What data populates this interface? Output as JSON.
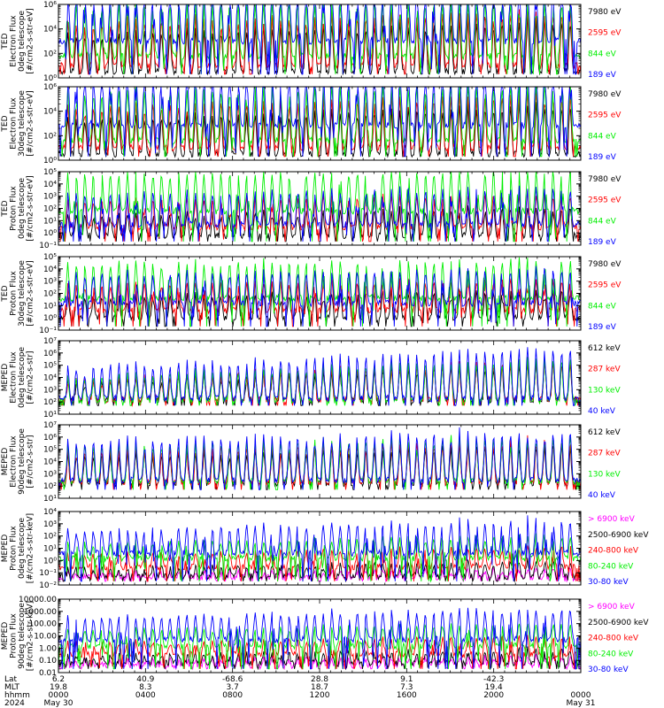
{
  "colors": {
    "black": "#000000",
    "red": "#ff0000",
    "green": "#00ee00",
    "blue": "#0000ff",
    "magenta": "#ff00ff"
  },
  "chart_data": [
    {
      "type": "line",
      "ylabel": [
        "TED",
        "Electron Flux",
        "0deg telescope",
        "[#/cm2-s-str-eV]"
      ],
      "yscale": "log",
      "ylim": [
        1,
        1000000
      ],
      "y_ticks": [
        "10⁰",
        "10²",
        "10⁴",
        "10⁶"
      ],
      "baseline": 2,
      "series": [
        {
          "name": "7980 eV",
          "color": "#000000",
          "level": 3.4,
          "spikes": [
            2.8,
            4.6
          ]
        },
        {
          "name": "2595 eV",
          "color": "#ff0000",
          "level": 10,
          "spikes": [
            3.4,
            4.8
          ]
        },
        {
          "name": "844 eV",
          "color": "#00ee00",
          "level": 60,
          "spikes": [
            4.2,
            5.0
          ]
        },
        {
          "name": "189 eV",
          "color": "#0000ff",
          "level": 1000,
          "spikes": [
            4.4,
            5.6
          ]
        }
      ]
    },
    {
      "type": "line",
      "ylabel": [
        "TED",
        "Electron Flux",
        "30deg telescope",
        "[#/cm2-s-str-eV]"
      ],
      "yscale": "log",
      "ylim": [
        1,
        1000000
      ],
      "y_ticks": [
        "10⁰",
        "10²",
        "10⁴",
        "10⁶"
      ],
      "baseline": 2,
      "series": [
        {
          "name": "7980 eV",
          "color": "#000000",
          "level": 3.2,
          "spikes": [
            2.6,
            4.4
          ]
        },
        {
          "name": "2595 eV",
          "color": "#ff0000",
          "level": 10,
          "spikes": [
            3.2,
            4.8
          ]
        },
        {
          "name": "844 eV",
          "color": "#00ee00",
          "level": 40,
          "spikes": [
            4.0,
            5.0
          ]
        },
        {
          "name": "189 eV",
          "color": "#0000ff",
          "level": 700,
          "spikes": [
            4.4,
            5.4
          ]
        }
      ]
    },
    {
      "type": "line",
      "ylabel": [
        "TED",
        "Proton Flux",
        "0deg telescope",
        "[#/cm2-s-str-eV]"
      ],
      "yscale": "log",
      "ylim": [
        0.1,
        100000
      ],
      "y_ticks": [
        "10⁻¹",
        "10⁰",
        "10¹",
        "10²",
        "10³",
        "10⁴",
        "10⁵"
      ],
      "baseline": 0.2,
      "series": [
        {
          "name": "7980 eV",
          "color": "#000000",
          "level": 0.6,
          "spikes": [
            1.4,
            2.6
          ]
        },
        {
          "name": "2595 eV",
          "color": "#ff0000",
          "level": 3,
          "spikes": [
            2.0,
            3.0
          ]
        },
        {
          "name": "844 eV",
          "color": "#00ee00",
          "level": 60,
          "spikes": [
            3.0,
            3.6
          ]
        },
        {
          "name": "189 eV",
          "color": "#0000ff",
          "level": 5,
          "spikes": [
            2.4,
            3.2
          ]
        }
      ]
    },
    {
      "type": "line",
      "ylabel": [
        "TED",
        "Proton Flux",
        "30deg telescope",
        "[#/cm2-s-str-eV]"
      ],
      "yscale": "log",
      "ylim": [
        0.1,
        100000
      ],
      "y_ticks": [
        "10⁻¹",
        "10⁰",
        "10¹",
        "10²",
        "10³",
        "10⁴",
        "10⁵"
      ],
      "baseline": 0.2,
      "series": [
        {
          "name": "7980 eV",
          "color": "#000000",
          "level": 1,
          "spikes": [
            1.6,
            2.4
          ]
        },
        {
          "name": "2595 eV",
          "color": "#ff0000",
          "level": 4,
          "spikes": [
            2.0,
            2.8
          ]
        },
        {
          "name": "844 eV",
          "color": "#00ee00",
          "level": 40,
          "spikes": [
            2.8,
            3.4
          ]
        },
        {
          "name": "189 eV",
          "color": "#0000ff",
          "level": 15,
          "spikes": [
            2.4,
            3.0
          ]
        }
      ]
    },
    {
      "type": "line",
      "ylabel": [
        "MEPED",
        "Electron Flux",
        "0deg telescope",
        "[#/cm2-s-str]"
      ],
      "yscale": "log",
      "ylim": [
        10,
        10000000
      ],
      "y_ticks": [
        "10¹",
        "10²",
        "10³",
        "10⁴",
        "10⁵",
        "10⁶",
        "10⁷"
      ],
      "baseline": 50,
      "series": [
        {
          "name": "612 keV",
          "color": "#000000",
          "level": 150,
          "spikes": [
            1.0,
            3.4
          ]
        },
        {
          "name": "287 keV",
          "color": "#ff0000",
          "level": 150,
          "spikes": [
            1.2,
            3.6
          ]
        },
        {
          "name": "130 keV",
          "color": "#00ee00",
          "level": 130,
          "spikes": [
            1.4,
            3.8
          ]
        },
        {
          "name": "40 keV",
          "color": "#0000ff",
          "level": 200,
          "spikes": [
            2.0,
            4.6
          ]
        }
      ]
    },
    {
      "type": "line",
      "ylabel": [
        "MEPED",
        "Electron Flux",
        "90deg telescope",
        "[#/cm2-s-str]"
      ],
      "yscale": "log",
      "ylim": [
        10,
        10000000
      ],
      "y_ticks": [
        "10¹",
        "10²",
        "10³",
        "10⁴",
        "10⁵",
        "10⁶",
        "10⁷"
      ],
      "baseline": 50,
      "series": [
        {
          "name": "612 keV",
          "color": "#000000",
          "level": 150,
          "spikes": [
            2.0,
            3.6
          ]
        },
        {
          "name": "287 keV",
          "color": "#ff0000",
          "level": 200,
          "spikes": [
            2.4,
            3.8
          ]
        },
        {
          "name": "130 keV",
          "color": "#00ee00",
          "level": 250,
          "spikes": [
            2.8,
            4.0
          ]
        },
        {
          "name": "40 keV",
          "color": "#0000ff",
          "level": 300,
          "spikes": [
            3.0,
            4.4
          ]
        }
      ]
    },
    {
      "type": "line",
      "ylabel": [
        "MEPED",
        "Proton Flux",
        "0deg telescope",
        "[#/cm2-s-str-keV]"
      ],
      "yscale": "log",
      "ylim": [
        0.01,
        10000
      ],
      "y_ticks": [
        "10⁻²",
        "10⁻¹",
        "10⁰",
        "10¹",
        "10²",
        "10³",
        "10⁴"
      ],
      "baseline": 0.02,
      "series": [
        {
          "name": "> 6900 keV",
          "color": "#ff00ff",
          "level": 0.04,
          "spikes": [
            0.2,
            0.8
          ]
        },
        {
          "name": "2500-6900 keV",
          "color": "#000000",
          "level": 0.05,
          "spikes": [
            0.4,
            1.4
          ]
        },
        {
          "name": "240-800 keV",
          "color": "#ff0000",
          "level": 0.3,
          "spikes": [
            0.8,
            1.8
          ]
        },
        {
          "name": "80-240 keV",
          "color": "#00ee00",
          "level": 1.5,
          "spikes": [
            1.0,
            2.0
          ]
        },
        {
          "name": "30-80 keV",
          "color": "#0000ff",
          "level": 4,
          "spikes": [
            1.6,
            3.0
          ]
        }
      ]
    },
    {
      "type": "line",
      "ylabel": [
        "MEPED",
        "Proton Flux",
        "90deg telescope",
        "[#/cm2-s-str-keV]"
      ],
      "yscale": "log",
      "ylim": [
        0.01,
        10000
      ],
      "y_ticks": [
        "0.01",
        "0.10",
        "1.00",
        "10.00",
        "100.00",
        "1000.00",
        "10000.00"
      ],
      "baseline": 0.02,
      "series": [
        {
          "name": "> 6900 keV",
          "color": "#ff00ff",
          "level": 0.04,
          "spikes": [
            0.2,
            0.8
          ]
        },
        {
          "name": "2500-6900 keV",
          "color": "#000000",
          "level": 0.06,
          "spikes": [
            0.4,
            1.2
          ]
        },
        {
          "name": "240-800 keV",
          "color": "#ff0000",
          "level": 0.3,
          "spikes": [
            0.8,
            1.6
          ]
        },
        {
          "name": "80-240 keV",
          "color": "#00ee00",
          "level": 1.5,
          "spikes": [
            1.0,
            2.0
          ]
        },
        {
          "name": "30-80 keV",
          "color": "#0000ff",
          "level": 5,
          "spikes": [
            1.6,
            2.8
          ]
        }
      ]
    }
  ],
  "x_axis": {
    "row_labels": [
      "Lat",
      "MLT",
      "hhmm",
      "2024"
    ],
    "ticks": [
      {
        "lat": "6.2",
        "mlt": "19.8",
        "hhmm": "0000",
        "date": "May 30"
      },
      {
        "lat": "40.9",
        "mlt": "8.3",
        "hhmm": "0400",
        "date": ""
      },
      {
        "lat": "-68.6",
        "mlt": "3.7",
        "hhmm": "0800",
        "date": ""
      },
      {
        "lat": "28.8",
        "mlt": "18.7",
        "hhmm": "1200",
        "date": ""
      },
      {
        "lat": "9.1",
        "mlt": "7.3",
        "hhmm": "1600",
        "date": ""
      },
      {
        "lat": "-42.3",
        "mlt": "19.4",
        "hhmm": "2000",
        "date": ""
      },
      {
        "lat": "",
        "mlt": "",
        "hhmm": "0000",
        "date": "May 31"
      }
    ]
  }
}
